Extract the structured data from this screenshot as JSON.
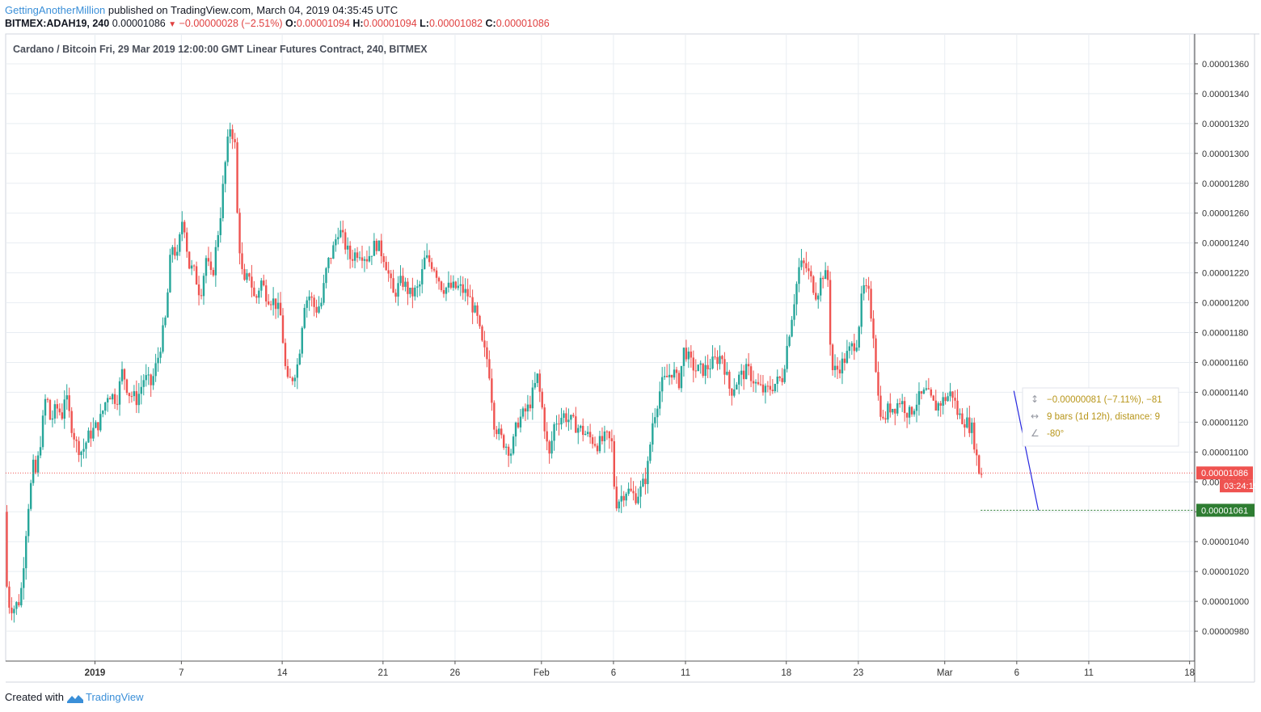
{
  "header": {
    "author": "GettingAnotherMillion",
    "published": "published on TradingView.com, March 04, 2019 04:35:45 UTC",
    "symbol": "BITMEX:ADAH19, 240",
    "last": "0.00001086",
    "change": "−0.00000028 (−2.51%)",
    "open_label": "O:",
    "open": "0.00001094",
    "high_label": "H:",
    "high": "0.00001094",
    "low_label": "L:",
    "low": "0.00001082",
    "close_label": "C:",
    "close": "0.00001086"
  },
  "footer": {
    "created_with": "Created with",
    "brand": "TradingView"
  },
  "colors": {
    "up": "#26a69a",
    "down": "#ef5350",
    "grid": "#e8edf2",
    "target": "#2e7d32",
    "drawing": "#2828e0",
    "measure_text": "#b8961a"
  },
  "chart_data": {
    "type": "candlestick",
    "title": "Cardano / Bitcoin Fri, 29 Mar 2019 12:00:00 GMT Linear Futures Contract, 240, BITMEX",
    "ylim": [
      9.6e-06,
      1.38e-05
    ],
    "y_ticks": [
      "0.00000980",
      "0.00001000",
      "0.00001020",
      "0.00001040",
      "0.00001060",
      "0.00001080",
      "0.00001100",
      "0.00001120",
      "0.00001140",
      "0.00001160",
      "0.00001180",
      "0.00001200",
      "0.00001220",
      "0.00001240",
      "0.00001260",
      "0.00001280",
      "0.00001300",
      "0.00001320",
      "0.00001340",
      "0.00001360"
    ],
    "y_tick_values": [
      980,
      1000,
      1020,
      1040,
      1060,
      1080,
      1100,
      1120,
      1140,
      1160,
      1180,
      1200,
      1220,
      1240,
      1260,
      1280,
      1300,
      1320,
      1340,
      1360
    ],
    "x_ticks": [
      "2019",
      "7",
      "14",
      "21",
      "26",
      "Feb",
      "6",
      "11",
      "18",
      "23",
      "Mar",
      "6",
      "11",
      "18"
    ],
    "x_tick_days": [
      0,
      6,
      13,
      20,
      25,
      31,
      36,
      41,
      48,
      53,
      59,
      64,
      69,
      76
    ],
    "x_start_day": -6.2,
    "x_end_day": 76.3,
    "price_series_e8": [
      [
        -6.2,
        1060
      ],
      [
        -6.0,
        1000
      ],
      [
        -5.6,
        995
      ],
      [
        -5.2,
        1000
      ],
      [
        -5.0,
        1010
      ],
      [
        -4.6,
        1060
      ],
      [
        -4.2,
        1090
      ],
      [
        -4.0,
        1085
      ],
      [
        -3.6,
        1115
      ],
      [
        -3.3,
        1140
      ],
      [
        -3.0,
        1120
      ],
      [
        -2.6,
        1130
      ],
      [
        -2.2,
        1125
      ],
      [
        -2.0,
        1140
      ],
      [
        -1.6,
        1120
      ],
      [
        -1.2,
        1105
      ],
      [
        -0.8,
        1100
      ],
      [
        -0.4,
        1110
      ],
      [
        0,
        1115
      ],
      [
        0.4,
        1120
      ],
      [
        1.0,
        1140
      ],
      [
        1.6,
        1135
      ],
      [
        2.0,
        1155
      ],
      [
        2.4,
        1140
      ],
      [
        3.0,
        1135
      ],
      [
        3.5,
        1150
      ],
      [
        4.0,
        1145
      ],
      [
        4.5,
        1165
      ],
      [
        5.0,
        1190
      ],
      [
        5.4,
        1240
      ],
      [
        5.8,
        1230
      ],
      [
        6.2,
        1260
      ],
      [
        6.6,
        1225
      ],
      [
        7.0,
        1220
      ],
      [
        7.4,
        1205
      ],
      [
        7.8,
        1230
      ],
      [
        8.2,
        1215
      ],
      [
        8.8,
        1260
      ],
      [
        9.2,
        1300
      ],
      [
        9.5,
        1320
      ],
      [
        9.8,
        1305
      ],
      [
        10.0,
        1250
      ],
      [
        10.4,
        1210
      ],
      [
        10.8,
        1220
      ],
      [
        11.2,
        1200
      ],
      [
        11.6,
        1215
      ],
      [
        12.0,
        1205
      ],
      [
        12.6,
        1200
      ],
      [
        13.0,
        1190
      ],
      [
        13.4,
        1145
      ],
      [
        13.8,
        1150
      ],
      [
        14.2,
        1160
      ],
      [
        14.6,
        1200
      ],
      [
        15.0,
        1205
      ],
      [
        15.4,
        1195
      ],
      [
        15.8,
        1200
      ],
      [
        16.2,
        1225
      ],
      [
        16.6,
        1235
      ],
      [
        17.0,
        1250
      ],
      [
        17.4,
        1240
      ],
      [
        17.8,
        1230
      ],
      [
        18.4,
        1235
      ],
      [
        19.0,
        1230
      ],
      [
        19.6,
        1240
      ],
      [
        20.2,
        1230
      ],
      [
        20.8,
        1205
      ],
      [
        21.4,
        1215
      ],
      [
        22.0,
        1205
      ],
      [
        22.6,
        1210
      ],
      [
        23.0,
        1230
      ],
      [
        23.6,
        1225
      ],
      [
        24.2,
        1210
      ],
      [
        24.8,
        1210
      ],
      [
        25.4,
        1210
      ],
      [
        26.0,
        1205
      ],
      [
        26.6,
        1190
      ],
      [
        27.0,
        1170
      ],
      [
        27.4,
        1160
      ],
      [
        27.8,
        1120
      ],
      [
        28.2,
        1110
      ],
      [
        28.6,
        1105
      ],
      [
        29.0,
        1100
      ],
      [
        29.4,
        1120
      ],
      [
        29.8,
        1125
      ],
      [
        30.2,
        1130
      ],
      [
        30.8,
        1150
      ],
      [
        31.2,
        1125
      ],
      [
        31.6,
        1095
      ],
      [
        32.0,
        1120
      ],
      [
        32.6,
        1125
      ],
      [
        33.2,
        1120
      ],
      [
        33.8,
        1115
      ],
      [
        34.4,
        1110
      ],
      [
        35.0,
        1105
      ],
      [
        35.6,
        1110
      ],
      [
        36.0,
        1105
      ],
      [
        36.2,
        1065
      ],
      [
        36.6,
        1070
      ],
      [
        37.0,
        1075
      ],
      [
        37.6,
        1070
      ],
      [
        38.0,
        1075
      ],
      [
        38.4,
        1085
      ],
      [
        38.8,
        1120
      ],
      [
        39.4,
        1145
      ],
      [
        39.8,
        1150
      ],
      [
        40.2,
        1155
      ],
      [
        40.6,
        1145
      ],
      [
        41.0,
        1170
      ],
      [
        41.4,
        1160
      ],
      [
        41.8,
        1155
      ],
      [
        42.4,
        1155
      ],
      [
        43.0,
        1160
      ],
      [
        43.6,
        1165
      ],
      [
        44.2,
        1140
      ],
      [
        44.8,
        1150
      ],
      [
        45.4,
        1155
      ],
      [
        46.0,
        1145
      ],
      [
        46.6,
        1140
      ],
      [
        47.2,
        1145
      ],
      [
        47.8,
        1150
      ],
      [
        48.2,
        1175
      ],
      [
        48.6,
        1200
      ],
      [
        49.0,
        1225
      ],
      [
        49.4,
        1225
      ],
      [
        49.8,
        1215
      ],
      [
        50.2,
        1205
      ],
      [
        50.6,
        1220
      ],
      [
        51.0,
        1215
      ],
      [
        51.2,
        1155
      ],
      [
        51.6,
        1155
      ],
      [
        52.0,
        1160
      ],
      [
        52.6,
        1170
      ],
      [
        53.0,
        1175
      ],
      [
        53.4,
        1210
      ],
      [
        53.8,
        1205
      ],
      [
        54.2,
        1175
      ],
      [
        54.4,
        1140
      ],
      [
        54.8,
        1120
      ],
      [
        55.2,
        1130
      ],
      [
        55.6,
        1130
      ],
      [
        56.0,
        1135
      ],
      [
        56.6,
        1125
      ],
      [
        57.2,
        1135
      ],
      [
        57.8,
        1140
      ],
      [
        58.4,
        1130
      ],
      [
        59.0,
        1135
      ],
      [
        59.6,
        1140
      ],
      [
        60.0,
        1125
      ],
      [
        60.6,
        1120
      ],
      [
        61.0,
        1115
      ],
      [
        61.4,
        1090
      ],
      [
        61.5,
        1086
      ]
    ],
    "last_price": "0.00001086",
    "countdown": "03:24:19",
    "target_price": "0.00001061",
    "measure": {
      "price_change": "−0.00000081 (−7.11%), −81",
      "bars": "9 bars (1d 12h), distance: 9",
      "angle": "-80°"
    }
  }
}
